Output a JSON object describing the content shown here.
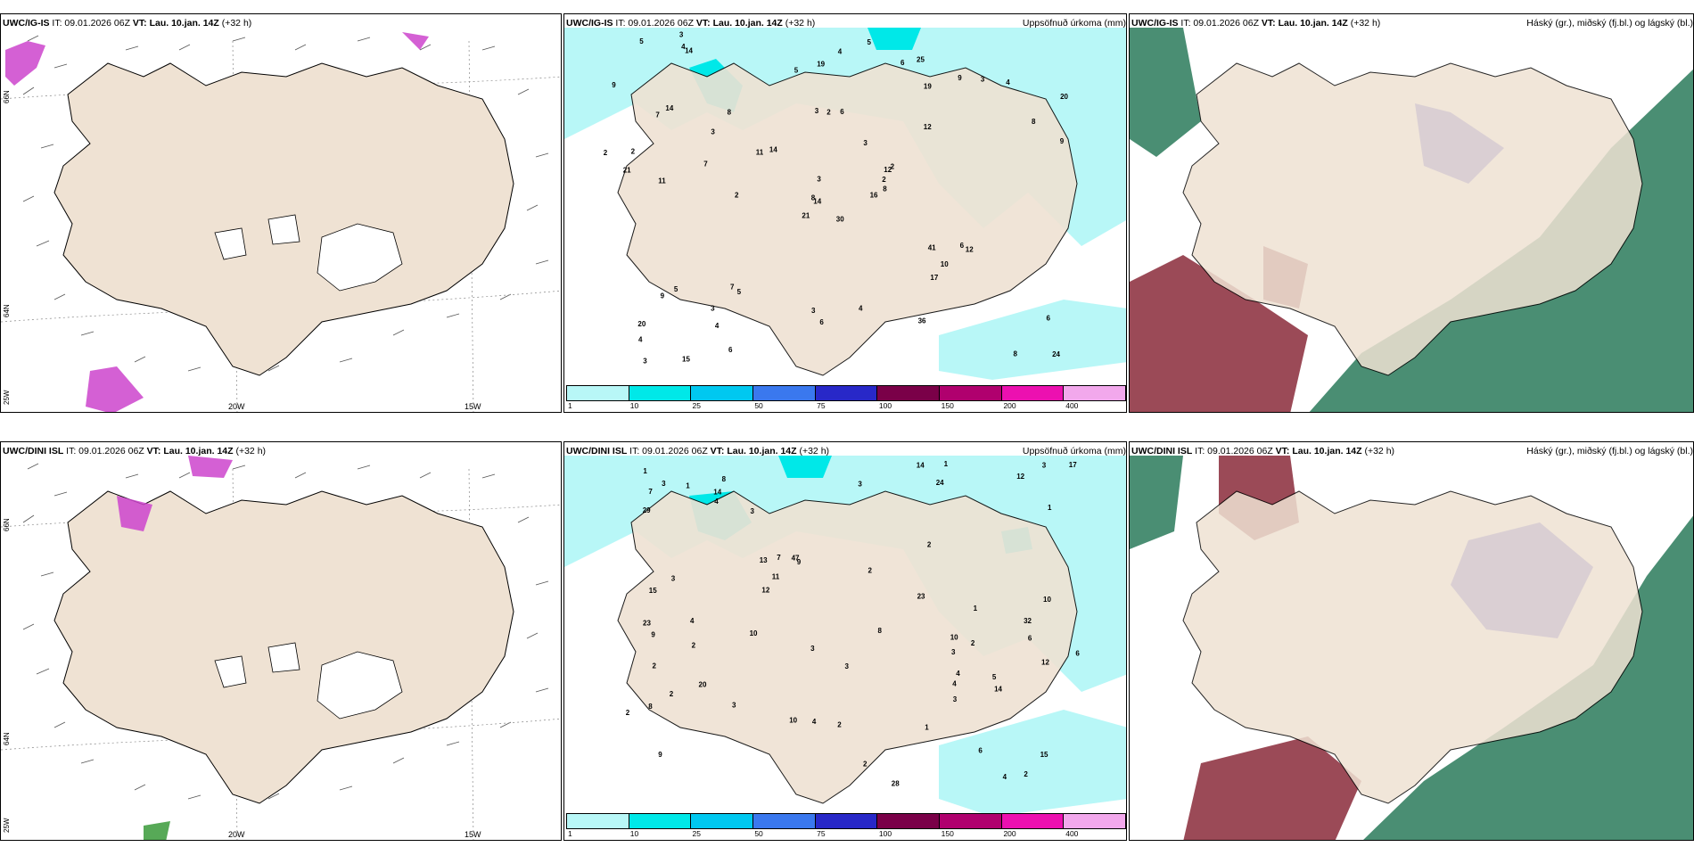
{
  "top": {
    "wind_header": {
      "model": "UWC/IG-IS",
      "it": "IT: 09.01.2026 06Z",
      "vt_prefix": "VT:",
      "vt": "Lau. 10.jan. 14Z",
      "lead": "(+32 h)"
    },
    "precip_header": {
      "model": "UWC/IG-IS",
      "it": "IT: 09.01.2026 06Z",
      "vt_prefix": "VT:",
      "vt": "Lau. 10.jan. 14Z",
      "lead": "(+32 h)",
      "title": "Uppsöfnuð úrkoma (mm)"
    },
    "cloud_header": {
      "model": "UWC/IG-IS",
      "it": "IT: 09.01.2026 06Z",
      "vt_prefix": "VT:",
      "vt": "Lau. 10.jan. 14Z",
      "lead": "(+32 h)",
      "title": "Háský (gr.), miðský (fj.bl.) og lágský (bl.)"
    }
  },
  "bottom": {
    "wind_header": {
      "model": "UWC/DINI ISL",
      "it": "IT: 09.01.2026 06Z",
      "vt_prefix": "VT:",
      "vt": "Lau. 10.jan. 14Z",
      "lead": "(+32 h)"
    },
    "precip_header": {
      "model": "UWC/DINI ISL",
      "it": "IT: 09.01.2026 06Z",
      "vt_prefix": "VT:",
      "vt": "Lau. 10.jan. 14Z",
      "lead": "(+32 h)",
      "title": "Uppsöfnuð úrkoma (mm)"
    },
    "cloud_header": {
      "model": "UWC/DINI ISL",
      "it": "IT: 09.01.2026 06Z",
      "vt_prefix": "VT:",
      "vt": "Lau. 10.jan. 14Z",
      "lead": "(+32 h)",
      "title": "Háský (gr.), miðský (fj.bl.) og lágský (bl.)"
    }
  },
  "axis": {
    "lon_20w": "20W",
    "lon_15w": "15W",
    "lat_66n": "66N",
    "lat_64n": "64N",
    "lon_25w": "25W"
  },
  "colorbar": {
    "ticks": [
      "1",
      "10",
      "25",
      "50",
      "75",
      "100",
      "150",
      "200",
      "400"
    ],
    "colors": [
      "#b8f7f7",
      "#00e8e8",
      "#00c8f0",
      "#3a78ee",
      "#2828c8",
      "#7a0048",
      "#b0006e",
      "#ec10b0",
      "#f2a8ec"
    ]
  },
  "precip_top_values": [
    "30",
    "7",
    "14",
    "20",
    "12",
    "5",
    "25",
    "6",
    "19",
    "16",
    "14",
    "24",
    "11",
    "20",
    "21",
    "12",
    "15",
    "3",
    "3",
    "5",
    "14",
    "4",
    "4",
    "2",
    "2",
    "12",
    "14",
    "19",
    "21",
    "41",
    "9",
    "8",
    "3",
    "3",
    "8",
    "9",
    "7",
    "8",
    "6",
    "6",
    "5",
    "11",
    "7",
    "17",
    "6",
    "2",
    "2",
    "3",
    "6",
    "8",
    "9",
    "8",
    "9",
    "10",
    "36",
    "3",
    "4",
    "5",
    "4",
    "4",
    "4",
    "2",
    "2",
    "3",
    "3",
    "3",
    "6",
    "5"
  ],
  "precip_bottom_values": [
    "3",
    "6",
    "9",
    "8",
    "9",
    "6",
    "8",
    "24",
    "13",
    "28",
    "29",
    "23",
    "7",
    "15",
    "10",
    "10",
    "3",
    "8",
    "47",
    "20",
    "17",
    "12",
    "12",
    "12",
    "14",
    "14",
    "4",
    "9",
    "4",
    "1",
    "2",
    "1",
    "11",
    "10",
    "32",
    "14",
    "4",
    "4",
    "2",
    "2",
    "1",
    "1",
    "2",
    "4",
    "5",
    "3",
    "2",
    "3",
    "23",
    "15",
    "6",
    "7",
    "3",
    "10",
    "3",
    "4",
    "2",
    "1",
    "2",
    "1",
    "2",
    "3",
    "2",
    "2",
    "3",
    "3",
    "3"
  ]
}
